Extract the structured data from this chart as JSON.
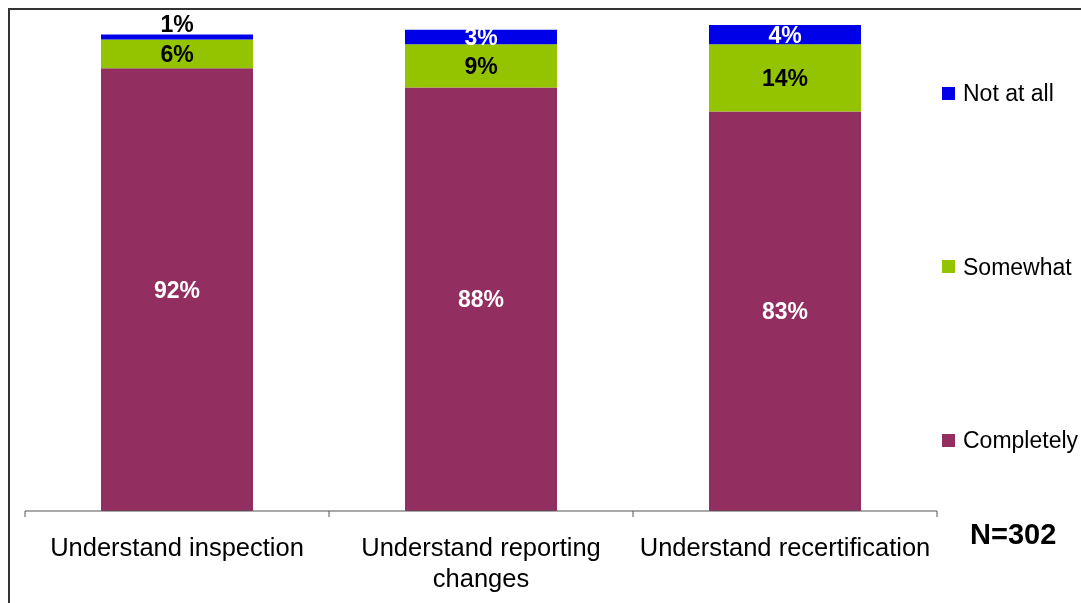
{
  "chart_data": {
    "type": "bar",
    "stacked": true,
    "categories": [
      "Understand inspection",
      "Understand reporting changes",
      "Understand recertification"
    ],
    "series": [
      {
        "name": "Completely",
        "color": "#932f60",
        "values": [
          92,
          88,
          83
        ],
        "value_labels": [
          "92%",
          "88%",
          "83%"
        ]
      },
      {
        "name": "Somewhat",
        "color": "#94c300",
        "values": [
          6,
          9,
          14
        ],
        "value_labels": [
          "6%",
          "9%",
          "14%"
        ]
      },
      {
        "name": "Not at all",
        "color": "#0000e8",
        "values": [
          1,
          3,
          4
        ],
        "value_labels": [
          "1%",
          "3%",
          "4%"
        ]
      }
    ],
    "legend": "right",
    "annotations": [
      "N=302"
    ]
  }
}
